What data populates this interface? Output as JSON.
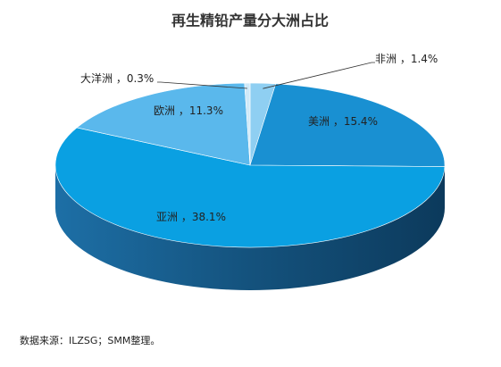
{
  "chart_data": {
    "type": "pie",
    "title": "再生精铅产量分大洲占比",
    "categories": [
      "非洲",
      "美洲",
      "亚洲",
      "欧洲",
      "大洋洲"
    ],
    "values": [
      1.4,
      15.4,
      38.1,
      11.3,
      0.3
    ],
    "value_labels": [
      "1.4%",
      "15.4%",
      "38.1%",
      "11.3%",
      "0.3%"
    ],
    "separator": " ，",
    "colors": [
      "#8fcff2",
      "#1990d2",
      "#0aa0e2",
      "#5ab8ec",
      "#cfe9f8"
    ],
    "source": "数据来源：ILZSG；SMM整理。"
  }
}
